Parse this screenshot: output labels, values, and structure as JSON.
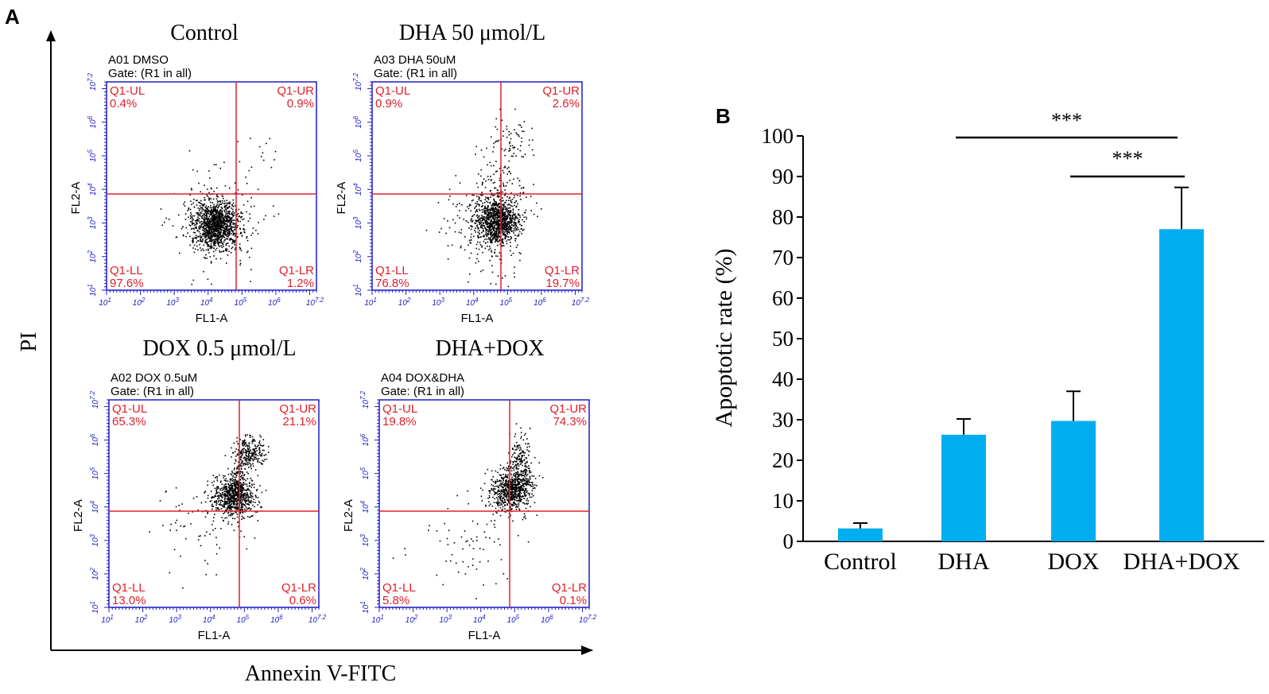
{
  "panel_a": {
    "letter": "A",
    "y_axis_label": "PI",
    "x_axis_label": "Annexin V-FITC",
    "plot_x_label": "FL1-A",
    "plot_y_label": "FL2-A",
    "tick_labels": [
      "10^1",
      "10^2",
      "10^3",
      "10^4",
      "10^5",
      "10^6",
      "10^7.2"
    ],
    "plots": [
      {
        "title": "Control",
        "sample": "A01 DMSO",
        "gate": "Gate: (R1 in all)",
        "quadrants": {
          "ul": {
            "name": "Q1-UL",
            "value": "0.4%"
          },
          "ur": {
            "name": "Q1-UR",
            "value": "0.9%"
          },
          "ll": {
            "name": "Q1-LL",
            "value": "97.6%"
          },
          "lr": {
            "name": "Q1-LR",
            "value": "1.2%"
          }
        }
      },
      {
        "title": "DHA 50 μmol/L",
        "sample": "A03 DHA 50uM",
        "gate": "Gate: (R1 in all)",
        "quadrants": {
          "ul": {
            "name": "Q1-UL",
            "value": "0.9%"
          },
          "ur": {
            "name": "Q1-UR",
            "value": "2.6%"
          },
          "ll": {
            "name": "Q1-LL",
            "value": "76.8%"
          },
          "lr": {
            "name": "Q1-LR",
            "value": "19.7%"
          }
        }
      },
      {
        "title": "DOX 0.5 μmol/L",
        "sample": "A02 DOX 0.5uM",
        "gate": "Gate: (R1 in all)",
        "quadrants": {
          "ul": {
            "name": "Q1-UL",
            "value": "65.3%"
          },
          "ur": {
            "name": "Q1-UR",
            "value": "21.1%"
          },
          "ll": {
            "name": "Q1-LL",
            "value": "13.0%"
          },
          "lr": {
            "name": "Q1-LR",
            "value": "0.6%"
          }
        }
      },
      {
        "title": "DHA+DOX",
        "sample": "A04 DOX&DHA",
        "gate": "Gate: (R1 in all)",
        "quadrants": {
          "ul": {
            "name": "Q1-UL",
            "value": "19.8%"
          },
          "ur": {
            "name": "Q1-UR",
            "value": "74.3%"
          },
          "ll": {
            "name": "Q1-LL",
            "value": "5.8%"
          },
          "lr": {
            "name": "Q1-LR",
            "value": "0.1%"
          }
        }
      }
    ]
  },
  "panel_b": {
    "letter": "B",
    "significance": [
      "***",
      "***"
    ]
  },
  "colors": {
    "bar": "#00aeef",
    "plot_frame": "#1c1cc8",
    "gate_lines": "#e0202a",
    "quadrant_text": "#e0202a",
    "events": "#000000"
  },
  "chart_data": {
    "type": "bar",
    "categories": [
      "Control",
      "DHA",
      "DOX",
      "DHA+DOX"
    ],
    "values": [
      3.2,
      26.3,
      29.7,
      77.0
    ],
    "errors": [
      1.3,
      3.9,
      7.3,
      10.3
    ],
    "ylabel": "Apoptotic rate (%)",
    "ylim": [
      0,
      100
    ],
    "yticks": [
      0,
      10,
      20,
      30,
      40,
      50,
      60,
      70,
      80,
      90,
      100
    ],
    "grid": false,
    "comparisons": [
      {
        "from": "DHA",
        "to": "DHA+DOX",
        "label": "***"
      },
      {
        "from": "DOX",
        "to": "DHA+DOX",
        "label": "***"
      }
    ]
  }
}
